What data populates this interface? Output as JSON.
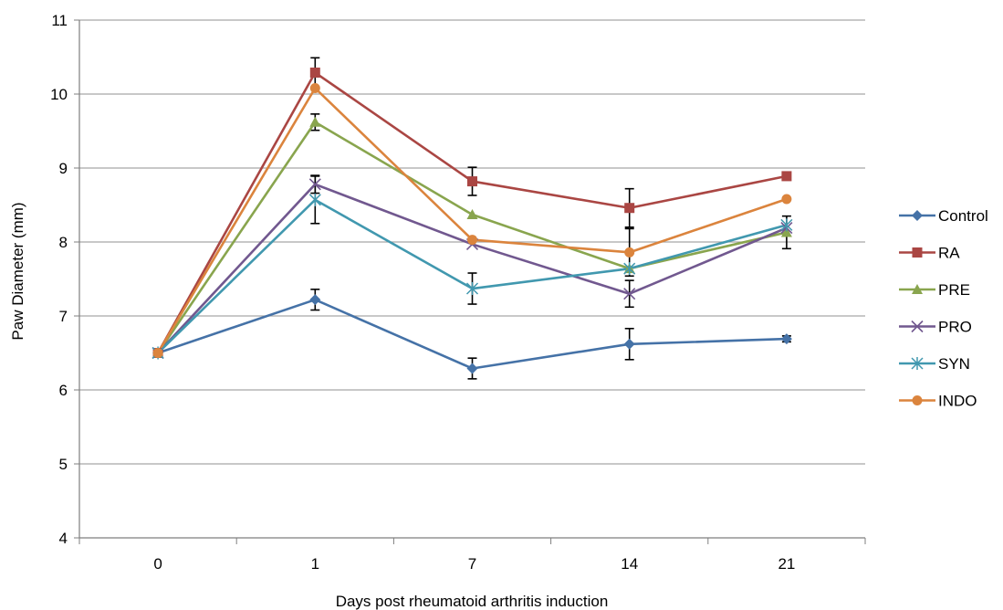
{
  "chart_data": {
    "type": "line",
    "xlabel": "Days post rheumatoid arthritis induction",
    "ylabel": "Paw Diameter (mm)",
    "categories": [
      "0",
      "1",
      "7",
      "14",
      "21"
    ],
    "ylim": [
      4,
      11
    ],
    "yticks": [
      4,
      5,
      6,
      7,
      8,
      9,
      10,
      11
    ],
    "grid": "horizontal",
    "legend_position": "right",
    "series": [
      {
        "name": "Control",
        "color": "#4572A7",
        "marker": "diamond",
        "values": [
          6.5,
          7.22,
          6.29,
          6.62,
          6.69
        ],
        "errors": [
          0.0,
          0.14,
          0.14,
          0.21,
          0.04
        ]
      },
      {
        "name": "RA",
        "color": "#AA4643",
        "marker": "square",
        "values": [
          6.5,
          10.29,
          8.82,
          8.46,
          8.89
        ],
        "errors": [
          0.0,
          0.2,
          0.19,
          0.26,
          0.0
        ]
      },
      {
        "name": "PRE",
        "color": "#89A54E",
        "marker": "triangle",
        "values": [
          6.5,
          9.62,
          8.37,
          7.64,
          8.13
        ],
        "errors": [
          0.0,
          0.11,
          0.0,
          0.0,
          0.22
        ]
      },
      {
        "name": "PRO",
        "color": "#71588F",
        "marker": "x",
        "values": [
          6.5,
          8.78,
          7.97,
          7.3,
          8.19
        ],
        "errors": [
          0.0,
          0.12,
          0.0,
          0.18,
          0.0
        ]
      },
      {
        "name": "SYN",
        "color": "#4198AF",
        "marker": "star",
        "values": [
          6.5,
          8.57,
          7.37,
          7.64,
          8.23
        ],
        "errors": [
          0.0,
          0.32,
          0.21,
          0.0,
          0.0
        ]
      },
      {
        "name": "INDO",
        "color": "#DB843D",
        "marker": "circle",
        "values": [
          6.5,
          10.08,
          8.03,
          7.86,
          8.58
        ],
        "errors": [
          0.0,
          0.0,
          0.0,
          0.32,
          0.0
        ]
      }
    ]
  }
}
